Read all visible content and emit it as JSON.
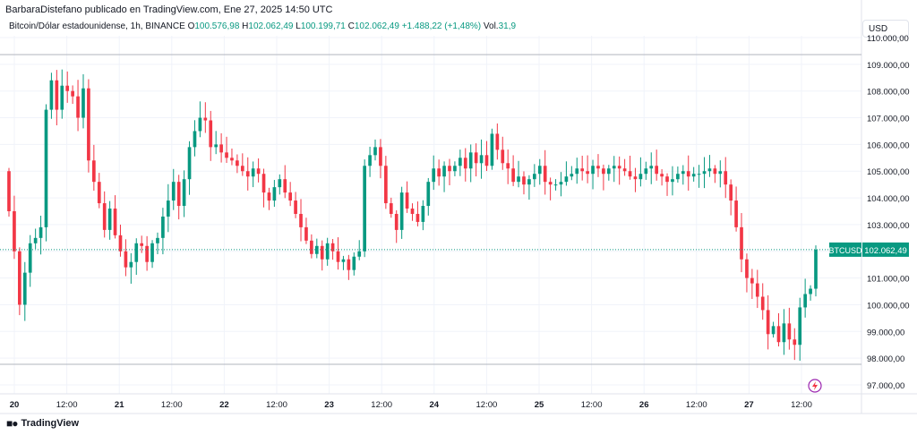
{
  "header": {
    "publisher_line": "BarbaraDistefano publicado en TradingView.com, Ene 27, 2025 14:50 UTC",
    "symbol_desc": "Bitcoin/Dólar estadounidense, 1h, BINANCE",
    "ohlc": [
      {
        "k": "O",
        "v": "100.576,98"
      },
      {
        "k": "H",
        "v": "102.062,49"
      },
      {
        "k": "L",
        "v": "100.199,71"
      },
      {
        "k": "C",
        "v": "102.062,49"
      }
    ],
    "change": "+1.488,22 (+1,48%)",
    "volume_label": "Vol.",
    "volume_value": "31,9",
    "currency_button": "USD"
  },
  "footer": {
    "brand": "TradingView",
    "logo": "tradingview-logo-icon"
  },
  "colors": {
    "up": "#089981",
    "down": "#f23645",
    "grid": "#f0f3fa",
    "axis_text": "#131722"
  },
  "chart_data": {
    "type": "candlestick",
    "symbol": "BTCUSD",
    "last_price": 102062.49,
    "last_price_label": "102.062,49",
    "ylim": [
      96700,
      110000
    ],
    "y_ticks": [
      97000,
      98000,
      99000,
      100000,
      101000,
      102000,
      103000,
      104000,
      105000,
      106000,
      107000,
      108000,
      109000,
      110000
    ],
    "y_tick_labels": [
      "97.000,00",
      "98.000,00",
      "99.000,00",
      "100.000,00",
      "101.000,00",
      "",
      "103.000,00",
      "104.000,00",
      "105.000,00",
      "106.000,00",
      "107.000,00",
      "108.000,00",
      "109.000,00",
      "110.000,00"
    ],
    "x_ticks": [
      "20",
      "12:00",
      "21",
      "12:00",
      "22",
      "12:00",
      "23",
      "12:00",
      "24",
      "12:00",
      "25",
      "12:00",
      "26",
      "12:00",
      "27",
      "12:00"
    ],
    "interval": "1h",
    "grid": true,
    "close_path": [
      [
        0,
        103500
      ],
      [
        1,
        102000
      ],
      [
        2,
        100000
      ],
      [
        3,
        101200
      ],
      [
        4,
        102300
      ],
      [
        5,
        102500
      ],
      [
        6,
        102900
      ],
      [
        7,
        107300
      ],
      [
        8,
        108400
      ],
      [
        9,
        107300
      ],
      [
        10,
        108200
      ],
      [
        11,
        108000
      ],
      [
        12,
        107800
      ],
      [
        13,
        107000
      ],
      [
        14,
        108100
      ],
      [
        15,
        105400
      ],
      [
        16,
        104600
      ],
      [
        17,
        103800
      ],
      [
        18,
        102800
      ],
      [
        19,
        103600
      ],
      [
        20,
        102600
      ],
      [
        21,
        102000
      ],
      [
        22,
        101400
      ],
      [
        23,
        101600
      ],
      [
        24,
        102300
      ],
      [
        25,
        102200
      ],
      [
        26,
        101600
      ],
      [
        27,
        102300
      ],
      [
        28,
        102500
      ],
      [
        29,
        103300
      ],
      [
        30,
        103900
      ],
      [
        31,
        104600
      ],
      [
        32,
        103700
      ],
      [
        33,
        104700
      ],
      [
        34,
        105900
      ],
      [
        35,
        106500
      ],
      [
        36,
        107000
      ],
      [
        37,
        106900
      ],
      [
        38,
        105900
      ],
      [
        39,
        106000
      ],
      [
        40,
        105700
      ],
      [
        41,
        105500
      ],
      [
        42,
        105400
      ],
      [
        43,
        105200
      ],
      [
        44,
        105000
      ],
      [
        45,
        104800
      ],
      [
        46,
        105100
      ],
      [
        47,
        104900
      ],
      [
        48,
        104200
      ],
      [
        49,
        103900
      ],
      [
        50,
        104400
      ],
      [
        51,
        104700
      ],
      [
        52,
        104200
      ],
      [
        53,
        103900
      ],
      [
        54,
        103400
      ],
      [
        55,
        102900
      ],
      [
        56,
        102400
      ],
      [
        57,
        101900
      ],
      [
        58,
        102200
      ],
      [
        59,
        101700
      ],
      [
        60,
        102300
      ],
      [
        61,
        102000
      ],
      [
        62,
        101600
      ],
      [
        63,
        101700
      ],
      [
        64,
        101300
      ],
      [
        65,
        101800
      ],
      [
        66,
        102000
      ],
      [
        67,
        105200
      ],
      [
        68,
        105600
      ],
      [
        69,
        105900
      ],
      [
        70,
        105200
      ],
      [
        71,
        103800
      ],
      [
        72,
        103400
      ],
      [
        73,
        102800
      ],
      [
        74,
        104200
      ],
      [
        75,
        103600
      ],
      [
        76,
        103400
      ],
      [
        77,
        103100
      ],
      [
        78,
        103700
      ],
      [
        79,
        104600
      ],
      [
        80,
        105100
      ],
      [
        81,
        104800
      ],
      [
        82,
        105200
      ],
      [
        83,
        105000
      ],
      [
        84,
        105200
      ],
      [
        85,
        105500
      ],
      [
        86,
        105100
      ],
      [
        87,
        105700
      ],
      [
        88,
        105300
      ],
      [
        89,
        105600
      ],
      [
        90,
        105200
      ],
      [
        91,
        106400
      ],
      [
        92,
        105800
      ],
      [
        93,
        105300
      ],
      [
        94,
        105100
      ],
      [
        95,
        104600
      ],
      [
        96,
        104800
      ],
      [
        97,
        104500
      ],
      [
        98,
        104700
      ],
      [
        99,
        104900
      ],
      [
        100,
        105200
      ],
      [
        101,
        104600
      ],
      [
        102,
        104500
      ],
      [
        103,
        104500
      ],
      [
        104,
        104600
      ],
      [
        105,
        104800
      ],
      [
        106,
        104900
      ],
      [
        107,
        105100
      ],
      [
        108,
        105000
      ],
      [
        109,
        104900
      ],
      [
        110,
        105200
      ],
      [
        111,
        105100
      ],
      [
        112,
        104900
      ],
      [
        113,
        105100
      ],
      [
        114,
        105200
      ],
      [
        115,
        105100
      ],
      [
        116,
        105000
      ],
      [
        117,
        104800
      ],
      [
        118,
        104700
      ],
      [
        119,
        104900
      ],
      [
        120,
        105100
      ],
      [
        121,
        105200
      ],
      [
        122,
        104900
      ],
      [
        123,
        104800
      ],
      [
        124,
        104600
      ],
      [
        125,
        104700
      ],
      [
        126,
        104900
      ],
      [
        127,
        105000
      ],
      [
        128,
        104800
      ],
      [
        129,
        104900
      ],
      [
        130,
        104900
      ],
      [
        131,
        105000
      ],
      [
        132,
        105100
      ],
      [
        133,
        104900
      ],
      [
        134,
        105000
      ],
      [
        135,
        104500
      ],
      [
        136,
        103900
      ],
      [
        137,
        102900
      ],
      [
        138,
        101700
      ],
      [
        139,
        101000
      ],
      [
        140,
        100800
      ],
      [
        141,
        100300
      ],
      [
        142,
        99800
      ],
      [
        143,
        98900
      ],
      [
        144,
        99200
      ],
      [
        145,
        98600
      ],
      [
        146,
        99300
      ],
      [
        147,
        98700
      ],
      [
        148,
        98500
      ],
      [
        149,
        99900
      ],
      [
        150,
        100400
      ],
      [
        151,
        100600
      ],
      [
        152,
        102062
      ]
    ]
  }
}
